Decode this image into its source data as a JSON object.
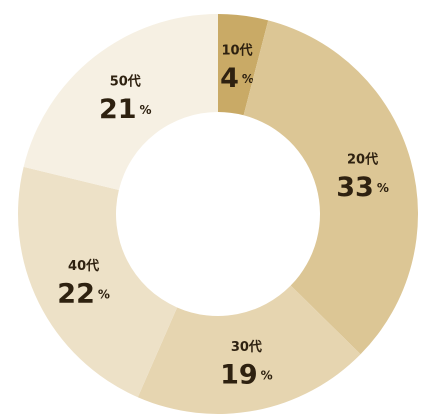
{
  "chart_data": {
    "type": "donut",
    "categories": [
      "10代",
      "20代",
      "30代",
      "40代",
      "50代"
    ],
    "values": [
      4,
      33,
      19,
      22,
      21
    ],
    "unit": "%",
    "colors": [
      "#c9aa66",
      "#dcc695",
      "#e6d5b0",
      "#ede1c7",
      "#f6f0e3"
    ]
  }
}
